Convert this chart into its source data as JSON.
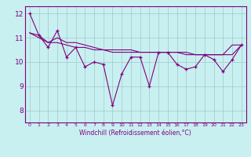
{
  "xlabel": "Windchill (Refroidissement éolien,°C)",
  "ylabel": "",
  "background_color": "#c8f0f0",
  "line_color": "#800080",
  "grid_color": "#a0c8c8",
  "x_ticks": [
    0,
    1,
    2,
    3,
    4,
    5,
    6,
    7,
    8,
    9,
    10,
    11,
    12,
    13,
    14,
    15,
    16,
    17,
    18,
    19,
    20,
    21,
    22,
    23
  ],
  "y_ticks": [
    8,
    9,
    10,
    11,
    12
  ],
  "ylim": [
    7.5,
    12.3
  ],
  "xlim": [
    -0.5,
    23.5
  ],
  "series1": [
    12.0,
    11.1,
    10.6,
    11.3,
    10.2,
    10.6,
    9.8,
    10.0,
    9.9,
    8.2,
    9.5,
    10.2,
    10.2,
    9.0,
    10.4,
    10.4,
    9.9,
    9.7,
    9.8,
    10.3,
    10.1,
    9.6,
    10.1,
    10.7
  ],
  "series2": [
    11.2,
    11.1,
    10.8,
    11.0,
    10.8,
    10.8,
    10.7,
    10.6,
    10.5,
    10.4,
    10.4,
    10.4,
    10.4,
    10.4,
    10.4,
    10.4,
    10.4,
    10.3,
    10.3,
    10.3,
    10.3,
    10.3,
    10.7,
    10.7
  ],
  "series3": [
    11.2,
    11.0,
    10.8,
    10.8,
    10.7,
    10.6,
    10.6,
    10.5,
    10.5,
    10.5,
    10.5,
    10.5,
    10.4,
    10.4,
    10.4,
    10.4,
    10.4,
    10.4,
    10.3,
    10.3,
    10.3,
    10.3,
    10.3,
    10.7
  ]
}
